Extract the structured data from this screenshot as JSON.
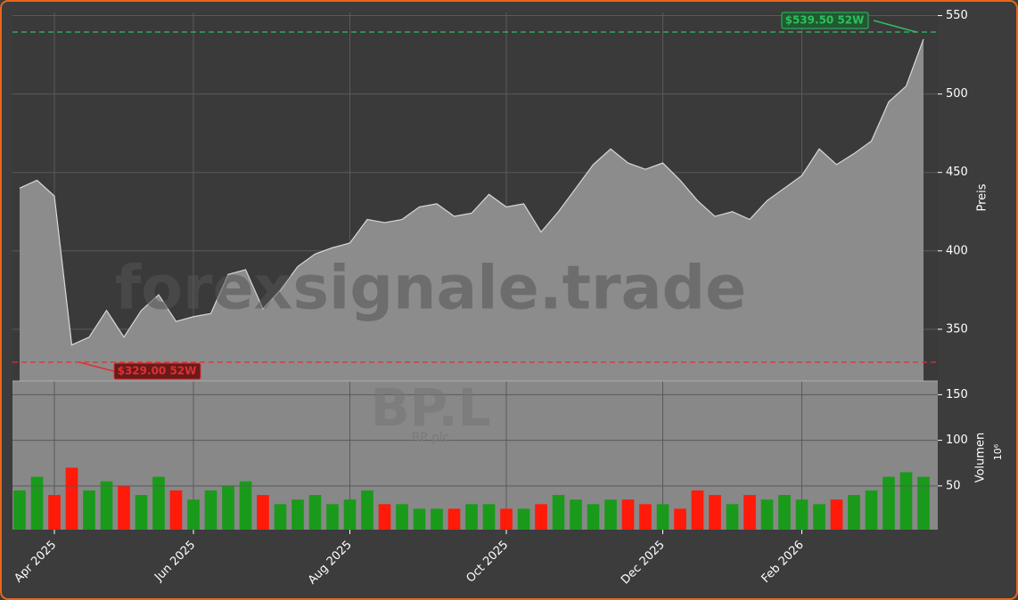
{
  "chart_data": [
    {
      "type": "area",
      "title": "BP.L",
      "subtitle": "BP plc",
      "watermark": "forexsignale.trade",
      "y_label": "Preis",
      "color": "#8c8c8c",
      "line_color": "#d8d8d8",
      "values": [
        440,
        445,
        435,
        340,
        345,
        362,
        345,
        362,
        372,
        355,
        358,
        360,
        385,
        388,
        363,
        375,
        390,
        398,
        402,
        405,
        420,
        418,
        420,
        428,
        430,
        422,
        424,
        436,
        428,
        430,
        412,
        425,
        440,
        455,
        465,
        456,
        452,
        456,
        445,
        432,
        422,
        425,
        420,
        432,
        440,
        448,
        465,
        455,
        462,
        470,
        495,
        505,
        535
      ],
      "ylim": [
        317,
        552
      ],
      "yticks": [
        350,
        400,
        450,
        500,
        550
      ],
      "grid": true,
      "high": {
        "value": 539.5,
        "label": "$539.50 52W",
        "color": "#2fbf5f"
      },
      "low": {
        "value": 329,
        "label": "$329.00 52W",
        "color": "#e03030"
      }
    },
    {
      "type": "bar",
      "y_label": "Volumen",
      "y_unit": "10⁶",
      "up_color": "#1a9a1a",
      "down_color": "#ff1a0a",
      "categories": [
        null,
        null,
        "Apr 2025",
        null,
        null,
        null,
        null,
        null,
        null,
        null,
        "Jun 2025",
        null,
        null,
        null,
        null,
        null,
        null,
        null,
        null,
        "Aug 2025",
        null,
        null,
        null,
        null,
        null,
        null,
        null,
        null,
        "Oct 2025",
        null,
        null,
        null,
        null,
        null,
        null,
        null,
        null,
        "Dec 2025",
        null,
        null,
        null,
        null,
        null,
        null,
        null,
        "Feb 2026",
        null,
        null,
        null,
        null,
        null,
        null,
        null
      ],
      "values": [
        45,
        60,
        40,
        70,
        45,
        55,
        50,
        40,
        60,
        45,
        35,
        45,
        50,
        55,
        40,
        30,
        35,
        40,
        30,
        35,
        45,
        30,
        30,
        25,
        25,
        25,
        30,
        30,
        25,
        25,
        30,
        40,
        35,
        30,
        35,
        35,
        30,
        30,
        25,
        45,
        40,
        30,
        40,
        35,
        40,
        35,
        30,
        35,
        40,
        45,
        60,
        65,
        60
      ],
      "ylim": [
        2,
        165
      ],
      "yticks": [
        50,
        100,
        150
      ],
      "grid": true
    }
  ]
}
